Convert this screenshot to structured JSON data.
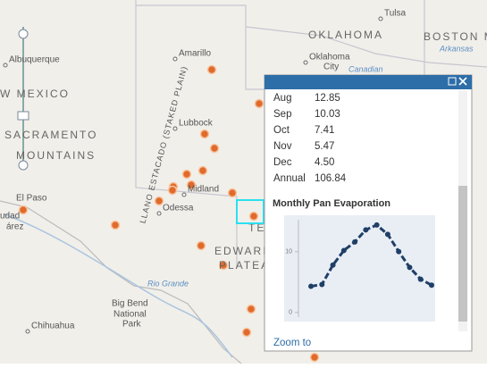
{
  "map": {
    "labels": [
      "Tulsa",
      "OKLAHOMA",
      "BOSTON MO",
      "Arkansas",
      "Amarillo",
      "Oklahoma",
      "City",
      "Canadian",
      "Albuquerque",
      "W MEXICO",
      "SACRAMENTO",
      "MOUNTAINS",
      "Lubbock",
      "LLANO ESTACADO (STAKED PLAIN)",
      "Midland",
      "Odessa",
      "El Paso",
      "udad",
      "árez",
      "TEX",
      "EDWARD",
      "PLATEA",
      "Rio Grande",
      "Big Bend",
      "National",
      "Park",
      "Chihuahua"
    ]
  },
  "popup": {
    "rows": [
      [
        "Aug",
        "12.85"
      ],
      [
        "Sep",
        "10.03"
      ],
      [
        "Oct",
        "7.41"
      ],
      [
        "Nov",
        "5.47"
      ],
      [
        "Dec",
        "4.50"
      ],
      [
        "Annual",
        "106.84"
      ]
    ],
    "link": "Zoom to"
  },
  "chart_data": {
    "type": "line",
    "title": "Monthly Pan Evaporation",
    "values": [
      4.3,
      4.6,
      7.8,
      10.2,
      11.6,
      13.6,
      14.4,
      12.85,
      10.03,
      7.41,
      5.47,
      4.5
    ],
    "color": "#1f3f66",
    "ylim": [
      -1.5,
      16
    ],
    "yticks": [
      0,
      10
    ]
  }
}
